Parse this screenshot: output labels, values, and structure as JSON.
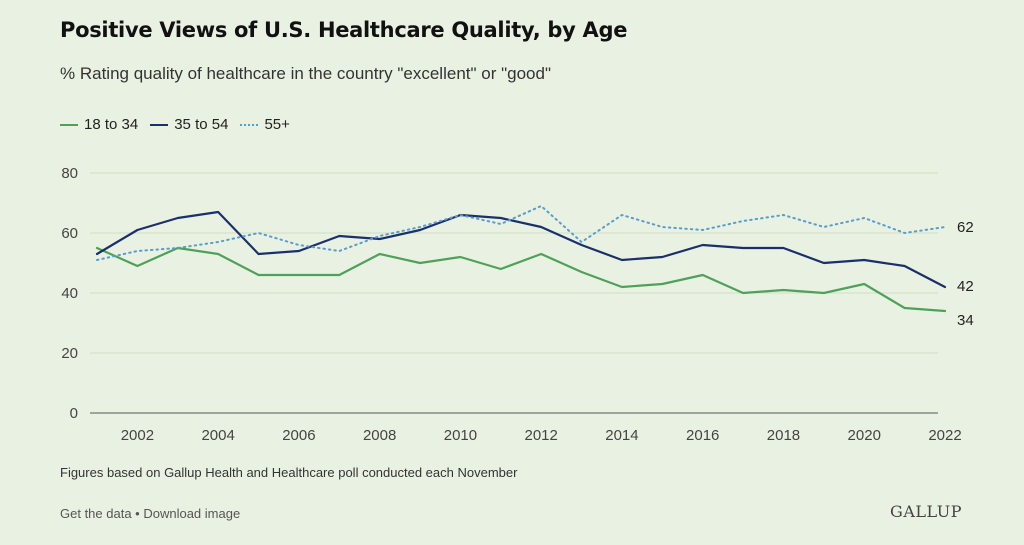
{
  "header": {
    "title": "Positive Views of U.S. Healthcare Quality, by Age",
    "subtitle": "% Rating quality of healthcare in the country \"excellent\" or \"good\""
  },
  "footer": {
    "note": "Figures based on Gallup Health and Healthcare poll conducted each November",
    "get_data": "Get the data",
    "separator": " • ",
    "download": "Download image",
    "logo": "GALLUP"
  },
  "chart_data": {
    "type": "line",
    "x": [
      2001,
      2002,
      2003,
      2004,
      2005,
      2006,
      2007,
      2008,
      2009,
      2010,
      2011,
      2012,
      2013,
      2014,
      2015,
      2016,
      2017,
      2018,
      2019,
      2020,
      2021,
      2022
    ],
    "x_ticks": [
      2002,
      2004,
      2006,
      2008,
      2010,
      2012,
      2014,
      2016,
      2018,
      2020,
      2022
    ],
    "y_ticks": [
      0,
      20,
      40,
      60,
      80
    ],
    "ylim": [
      0,
      80
    ],
    "xlim": [
      2001,
      2022
    ],
    "grid": true,
    "legend_position": "top-left",
    "series": [
      {
        "name": "18 to 34",
        "color": "#4fa15a",
        "style": "solid",
        "values": [
          55,
          49,
          55,
          53,
          46,
          46,
          46,
          53,
          50,
          52,
          48,
          53,
          47,
          42,
          43,
          46,
          40,
          41,
          40,
          43,
          35,
          34
        ],
        "end_label": "34"
      },
      {
        "name": "35 to 54",
        "color": "#1b2f6b",
        "style": "solid",
        "values": [
          53,
          61,
          65,
          67,
          53,
          54,
          59,
          58,
          61,
          66,
          65,
          62,
          56,
          51,
          52,
          56,
          55,
          55,
          50,
          51,
          49,
          42
        ],
        "end_label": "42"
      },
      {
        "name": "55+",
        "color": "#5b9ccb",
        "style": "dotted",
        "values": [
          51,
          54,
          55,
          57,
          60,
          56,
          54,
          59,
          62,
          66,
          63,
          69,
          57,
          66,
          62,
          61,
          64,
          66,
          62,
          65,
          60,
          62
        ],
        "end_label": "62"
      }
    ]
  }
}
